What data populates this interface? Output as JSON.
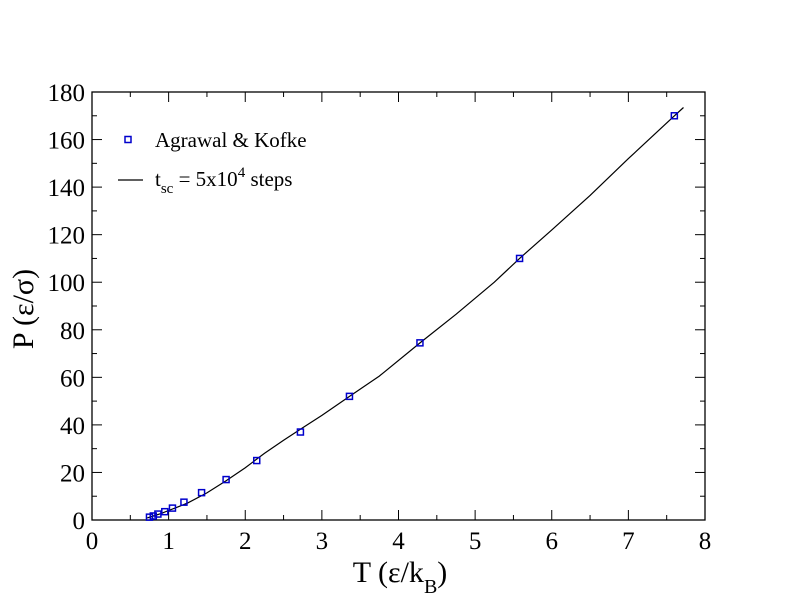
{
  "chart_data": {
    "type": "scatter",
    "xlabel": {
      "main": "T (ε/k",
      "sub": "B",
      "close": ")"
    },
    "ylabel": "P (ε/σ)",
    "xlim": [
      0,
      8
    ],
    "ylim": [
      0,
      180
    ],
    "xticks": [
      0,
      1,
      2,
      3,
      4,
      5,
      6,
      7,
      8
    ],
    "yticks": [
      0,
      20,
      40,
      60,
      80,
      100,
      120,
      140,
      160,
      180
    ],
    "grid": false,
    "legend_position": "top-left",
    "series": [
      {
        "name": "Agrawal & Kofke",
        "kind": "markers",
        "marker": "square",
        "color": "#0000cc",
        "x": [
          0.75,
          0.8,
          0.86,
          0.95,
          1.05,
          1.2,
          1.43,
          1.75,
          2.15,
          2.72,
          3.36,
          4.28,
          5.58,
          7.6
        ],
        "y": [
          1.2,
          1.7,
          2.5,
          3.5,
          5.0,
          7.5,
          11.5,
          17.0,
          25.0,
          37.0,
          52.0,
          74.5,
          110.0,
          170.0
        ]
      },
      {
        "name": "t_sc = 5x10^4 steps",
        "legend_label": {
          "t": "t",
          "sub": "sc",
          "mid": " = 5x10",
          "sup": "4",
          "tail": " steps"
        },
        "kind": "line",
        "color": "#000000",
        "x": [
          0.72,
          0.8,
          0.9,
          1.0,
          1.1,
          1.25,
          1.5,
          1.75,
          2.0,
          2.25,
          2.5,
          2.75,
          3.0,
          3.36,
          3.75,
          4.28,
          4.75,
          5.25,
          5.58,
          6.0,
          6.5,
          7.0,
          7.6,
          7.72
        ],
        "y": [
          0.9,
          1.7,
          2.7,
          4.0,
          5.2,
          7.2,
          11.4,
          16.5,
          22.0,
          28.0,
          33.5,
          38.8,
          44.0,
          52.0,
          60.5,
          74.5,
          86.5,
          100.0,
          110.0,
          122.0,
          136.5,
          152.0,
          170.0,
          173.5
        ]
      }
    ]
  }
}
